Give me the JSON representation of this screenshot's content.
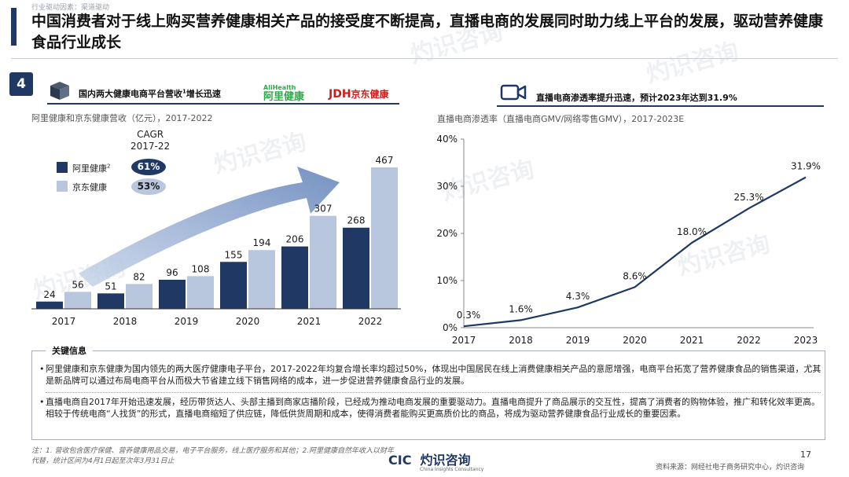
{
  "breadcrumb": "行业驱动因素：渠道驱动",
  "title": "中国消费者对于线上购买营养健康相关产品的接受度不断提高，直播电商的发展同时助力线上平台的发展，驱动营养健康食品行业成长",
  "badge": "4",
  "colors": {
    "navy": "#1f3864",
    "light_blue": "#b8c7de",
    "line": "#1f3864",
    "ali_green": "#2eaa4a",
    "jd_red": "#d21a1a"
  },
  "icons": [
    "box-icon",
    "video-camera-icon"
  ],
  "left": {
    "header": "国内两大健康电商平台营收",
    "header_sup": "1",
    "header_tail": "增长迅速",
    "logo_ali_small": "AliHealth",
    "logo_ali": "阿里健康",
    "logo_jd": "JDH",
    "logo_jd_cn": "京东健康",
    "subtitle": "阿里健康和京东健康营收（亿元），2017-2022",
    "cagr_label_1": "CAGR",
    "cagr_label_2": "2017-22"
  },
  "right": {
    "header": "直播电商渗透率提升迅速，预计2023年达到31.9%",
    "subtitle": "直播电商渗透率（直播电商GMV/网络零售GMV），2017-2023E"
  },
  "chart_data": [
    {
      "type": "bar",
      "categories": [
        "2017",
        "2018",
        "2019",
        "2020",
        "2021",
        "2022"
      ],
      "series": [
        {
          "name": "阿里健康",
          "name_sup": "2",
          "cagr": "61%",
          "values": [
            24,
            51,
            96,
            155,
            206,
            268
          ]
        },
        {
          "name": "京东健康",
          "cagr": "53%",
          "values": [
            56,
            82,
            108,
            194,
            307,
            467
          ]
        }
      ],
      "ylim": [
        0,
        480
      ],
      "legend": "top-left",
      "grid": false
    },
    {
      "type": "line",
      "x": [
        "2017",
        "2018",
        "2019",
        "2020",
        "2021",
        "2022",
        "2023"
      ],
      "values": [
        0.3,
        1.6,
        4.3,
        8.6,
        18.0,
        25.3,
        31.9
      ],
      "labels": [
        "0.3%",
        "1.6%",
        "4.3%",
        "8.6%",
        "18.0%",
        "25.3%",
        "31.9%"
      ],
      "yticks": [
        "0%",
        "10%",
        "20%",
        "30%",
        "40%"
      ],
      "ylim": [
        0,
        40
      ],
      "grid": false
    }
  ],
  "key": {
    "label": "关键信息",
    "p1": "阿里健康和京东健康为国内领先的两大医疗健康电子平台，2017-2022年均复合增长率均超过50%，体现出中国居民在线上消费健康相关产品的意愿增强，电商平台拓宽了营养健康食品的销售渠道，尤其是新品牌可以通过布局电商平台从而极大节省建立线下销售网络的成本，进一步促进营养健康食品行业的发展。",
    "p2": "直播电商自2017年开始迅速发展，经历带货达人、头部主播到商家店播阶段，已经成为推动电商发展的重要驱动力。直播电商提升了商品展示的交互性，提高了消费者的购物体验，推广和转化效率更高。相较于传统电商“人找货”的形式，直播电商缩短了供应链，降低供货周期和成本，使得消费者能购买更高质价比的商品，将成为驱动营养健康食品行业成长的重要因素。"
  },
  "footer": {
    "note": "注：1. 营收包含医疗保健、营养健康用品交易，电子平台服务，线上医疗服务和其他；2.阿里健康自然年收入以财年代替，统计区间为4月1日起至次年3月31日止",
    "logo": "CIC",
    "logo_cn": "灼识咨询",
    "logo_en": "China Insights Consultancy",
    "page": "17",
    "source": "资料来源：网经社电子商务研究中心，灼识咨询"
  },
  "watermark": "灼识咨询"
}
